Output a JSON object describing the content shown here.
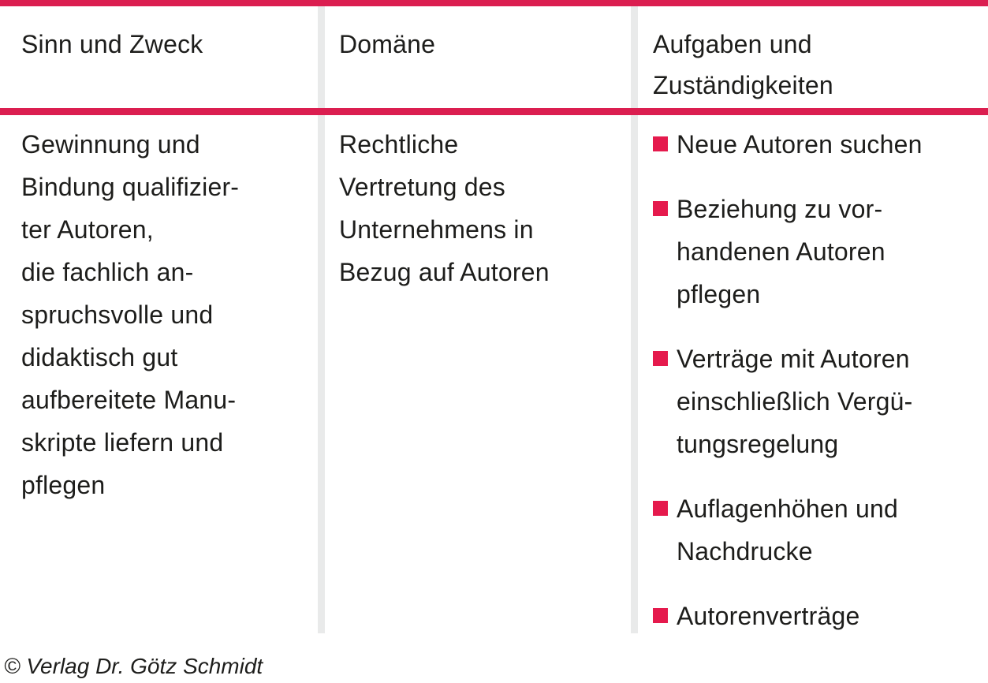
{
  "colors": {
    "rule": "#db1e50",
    "bullet": "#e51a4d",
    "divider": "#e9eaea",
    "text": "#1d1d1b"
  },
  "table": {
    "headers": {
      "purpose": "Sinn und Zweck",
      "domain": "Domäne",
      "tasks": "Aufgaben und\nZuständigkeiten"
    },
    "cells": {
      "purpose": "Gewinnung und\nBindung qualifizier-\nter Autoren,\ndie fachlich an-\nspruchsvolle und\ndidaktisch gut\naufbereitete Manu-\nskripte liefern und\npflegen",
      "domain": "Rechtliche\nVertretung des\nUnternehmens in\nBezug auf Autoren",
      "tasks": [
        "Neue Autoren suchen",
        "Beziehung zu vor-\nhandenen Autoren\npflegen",
        "Verträge mit Autoren\neinschließlich Vergü-\ntungsregelung",
        "Auflagenhöhen und\nNachdrucke",
        "Autorenverträge"
      ]
    }
  },
  "footer": {
    "copyright": "© Verlag Dr. Götz Schmidt"
  }
}
